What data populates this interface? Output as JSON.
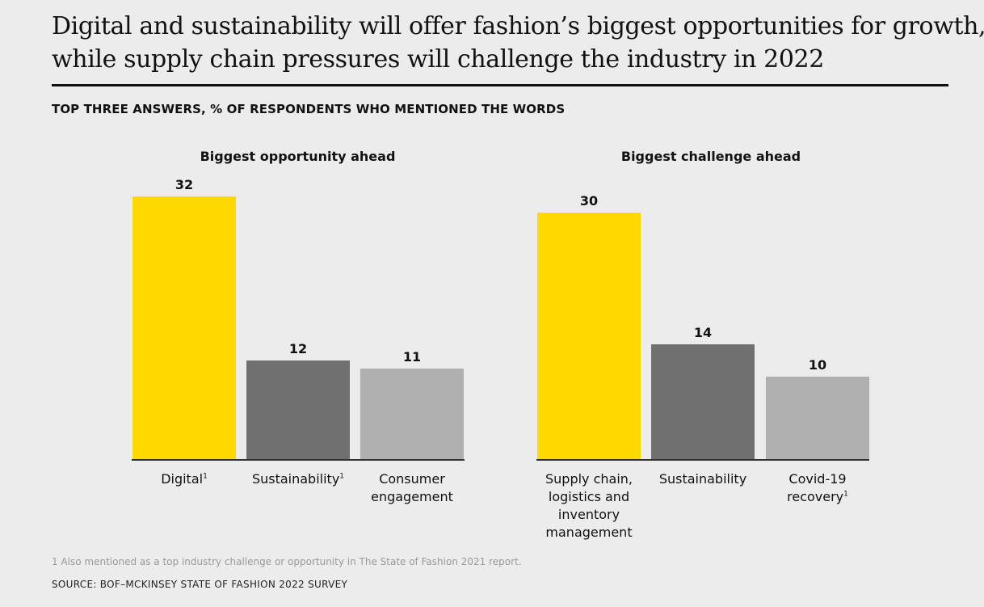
{
  "title_lines": [
    "Digital and sustainability will offer fashion’s biggest opportunities for growth,",
    "while supply chain pressures will challenge the industry in 2022"
  ],
  "subtitle": "TOP THREE ANSWERS, % OF RESPONDENTS WHO MENTIONED THE WORDS",
  "footnote": "1 Also mentioned as a top industry challenge or opportunity in The State of Fashion 2021 report.",
  "source": "SOURCE: BOF–MCKINSEY STATE OF FASHION 2022 SURVEY",
  "colors": {
    "yellow": "#FFD900",
    "dark_gray": "#707070",
    "light_gray": "#B0B0B0"
  },
  "chart_data": [
    {
      "type": "bar",
      "title": "Biggest opportunity ahead",
      "categories": [
        "Digital",
        "Sustainability",
        "Consumer engagement"
      ],
      "category_lines": [
        [
          "Digital"
        ],
        [
          "Sustainability"
        ],
        [
          "Consumer",
          "engagement"
        ]
      ],
      "footnote_marks": [
        "1",
        "1",
        ""
      ],
      "values": [
        32,
        12,
        11
      ],
      "bar_colors": [
        "#FFD900",
        "#707070",
        "#B0B0B0"
      ]
    },
    {
      "type": "bar",
      "title": "Biggest challenge ahead",
      "categories": [
        "Supply chain, logistics and inventory management",
        "Sustainability",
        "Covid-19 recovery"
      ],
      "category_lines": [
        [
          "Supply chain,",
          "logistics and",
          "inventory",
          "management"
        ],
        [
          "Sustainability"
        ],
        [
          "Covid-19",
          "recovery"
        ]
      ],
      "footnote_marks": [
        "",
        "",
        "1"
      ],
      "values": [
        30,
        14,
        10
      ],
      "bar_colors": [
        "#FFD900",
        "#707070",
        "#B0B0B0"
      ]
    }
  ]
}
